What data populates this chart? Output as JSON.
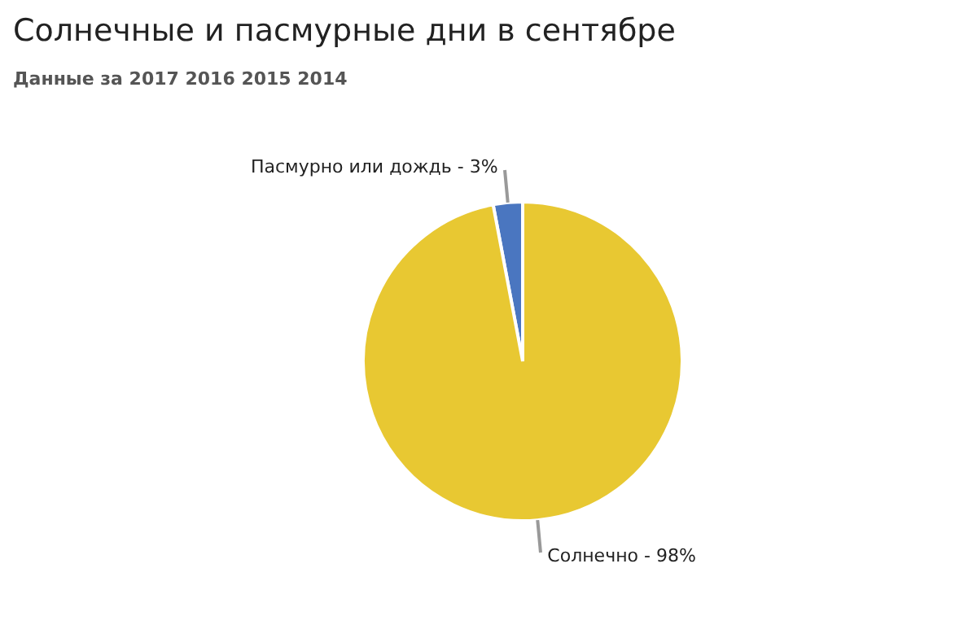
{
  "chart_data": {
    "type": "pie",
    "title": "Солнечные и пасмурные дни в сентябре",
    "subtitle": "Данные за 2017  2016  2015  2014",
    "categories": [
      "Пасмурно или дождь",
      "Солнечно"
    ],
    "values": [
      3,
      98
    ],
    "value_labels": [
      "3%",
      "98%"
    ],
    "colors": [
      "#4a76c0",
      "#e8c832"
    ],
    "legend": false
  }
}
